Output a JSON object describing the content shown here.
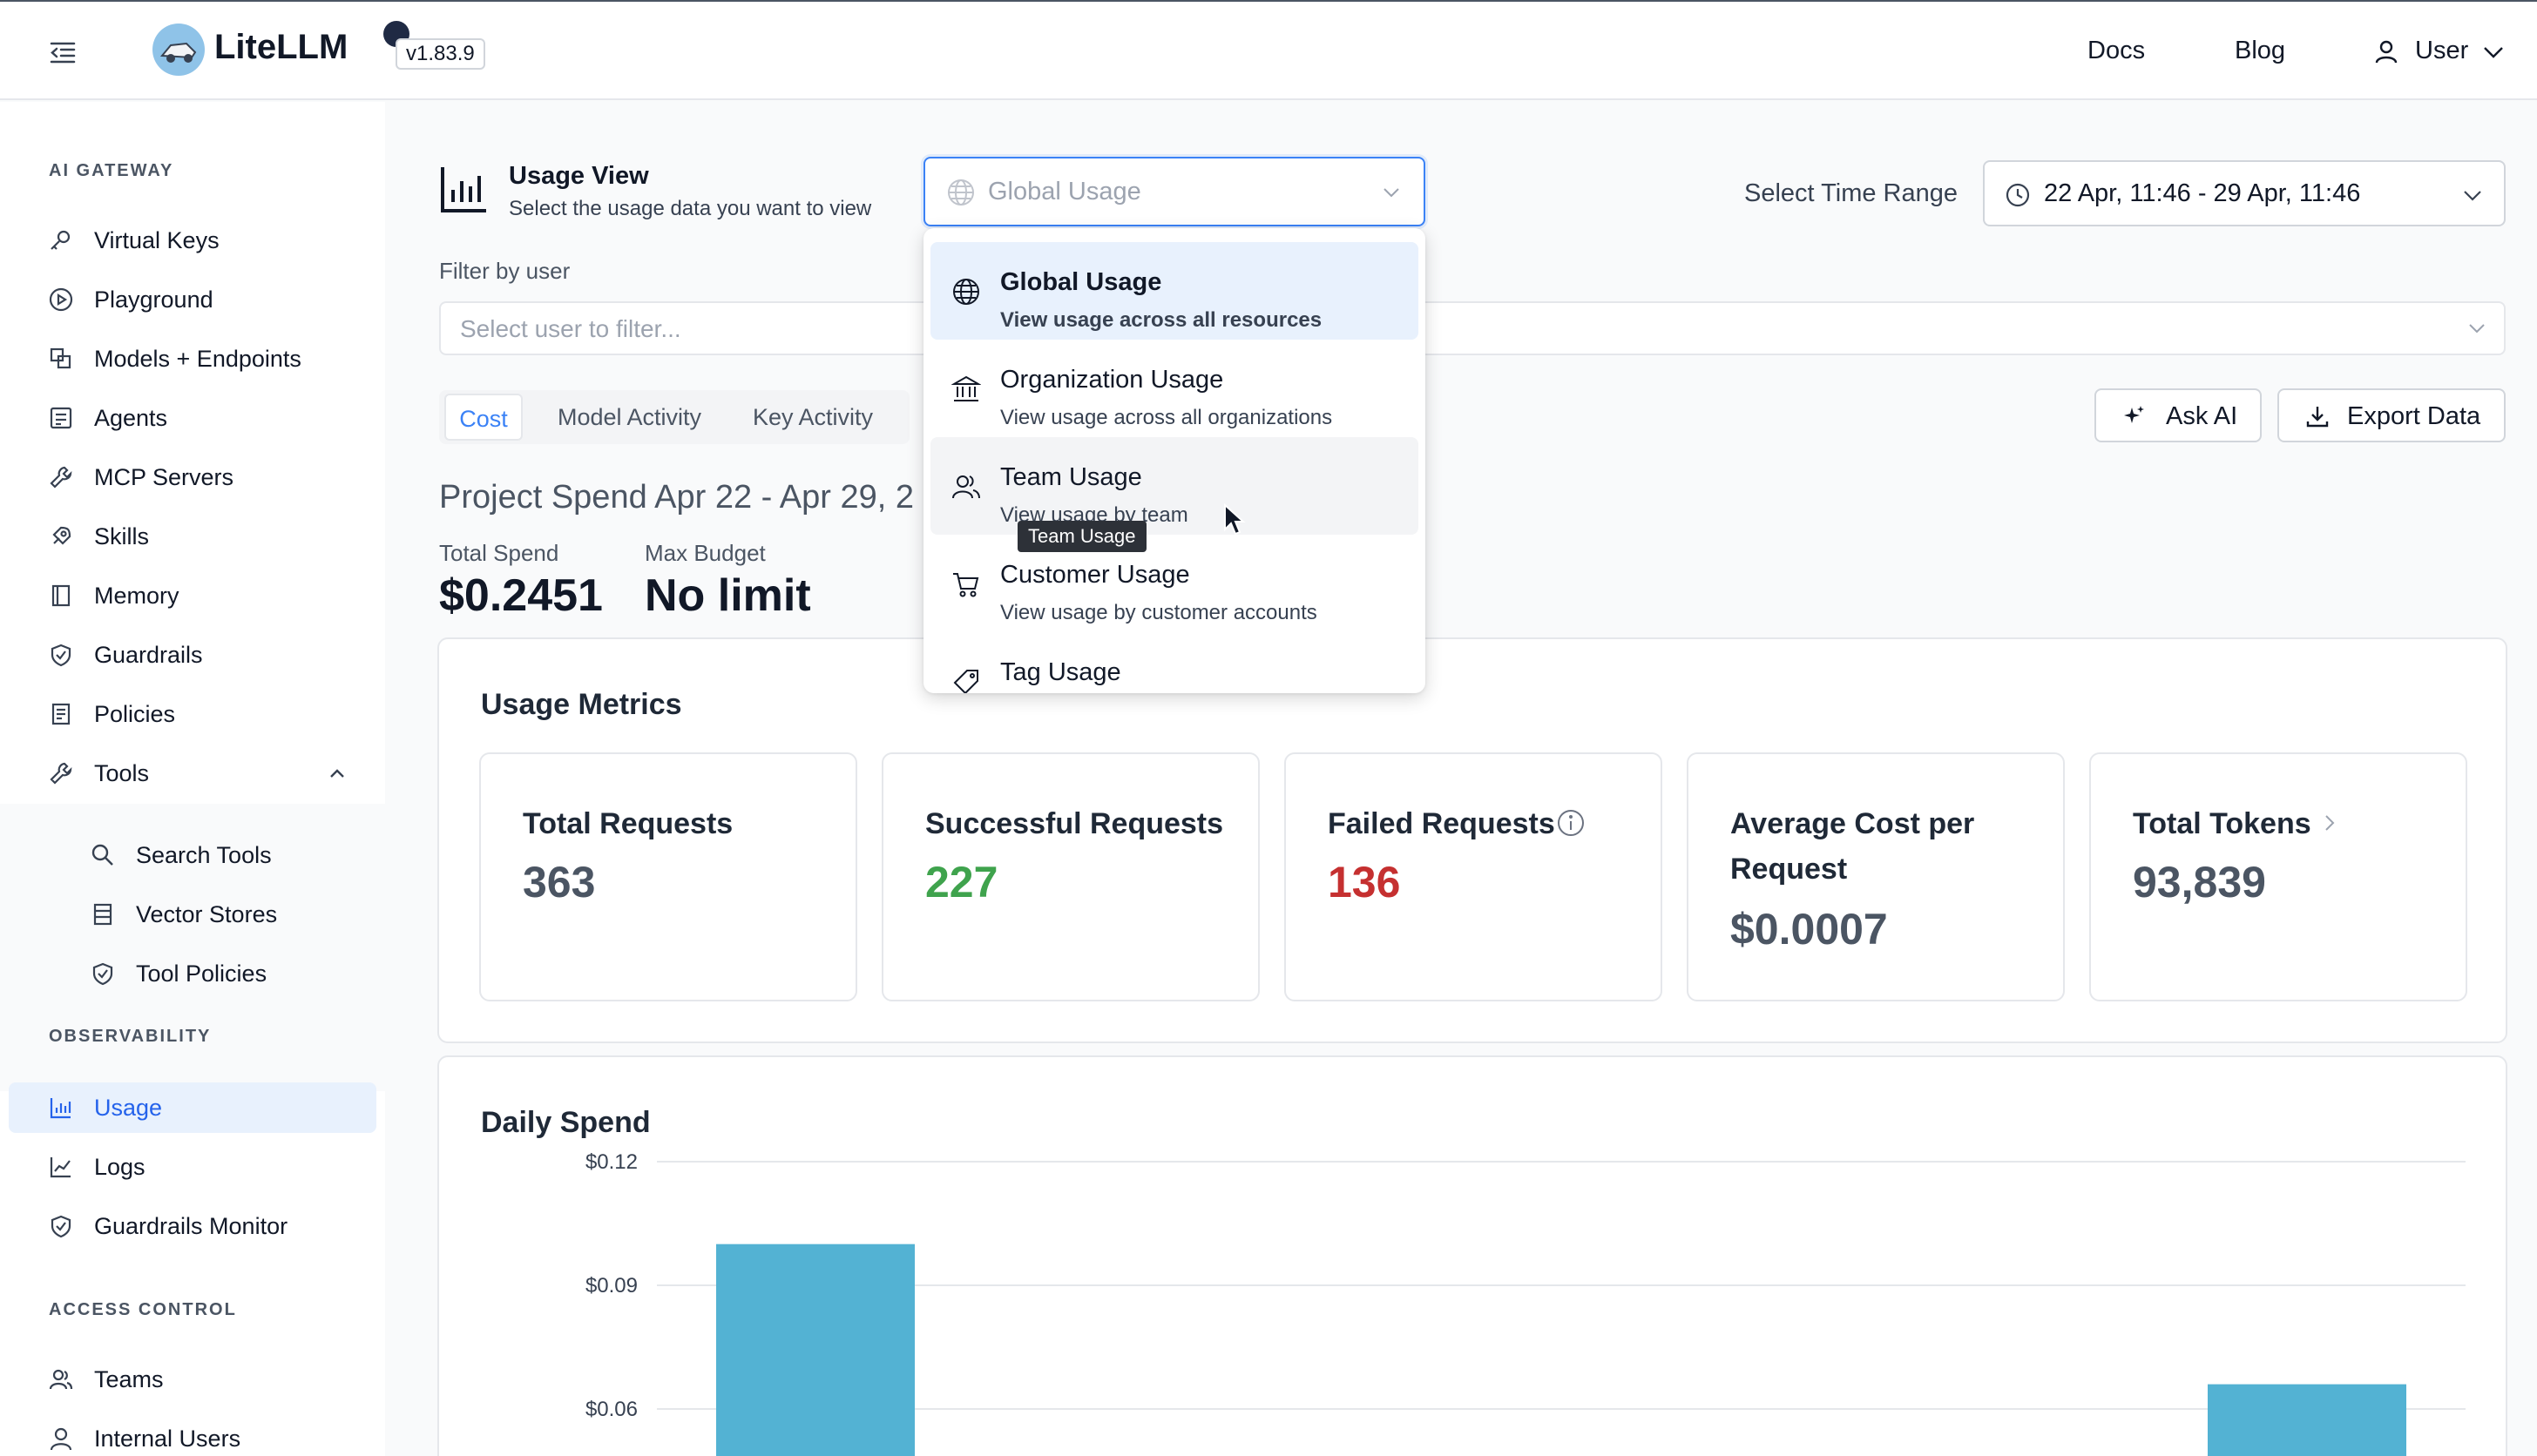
{
  "header": {
    "brand": "LiteLLM",
    "version": "v1.83.9",
    "links": {
      "docs": "Docs",
      "blog": "Blog",
      "user": "User"
    }
  },
  "sidebar": {
    "sections": {
      "gateway": "AI GATEWAY",
      "observability": "OBSERVABILITY",
      "access": "ACCESS CONTROL"
    },
    "items": [
      {
        "label": "Virtual Keys",
        "icon": "key-icon"
      },
      {
        "label": "Playground",
        "icon": "play-icon"
      },
      {
        "label": "Models + Endpoints",
        "icon": "models-icon"
      },
      {
        "label": "Agents",
        "icon": "agent-icon"
      },
      {
        "label": "MCP Servers",
        "icon": "wrench-icon"
      },
      {
        "label": "Skills",
        "icon": "rocket-icon"
      },
      {
        "label": "Memory",
        "icon": "book-icon"
      },
      {
        "label": "Guardrails",
        "icon": "shield-icon"
      },
      {
        "label": "Policies",
        "icon": "policy-icon"
      },
      {
        "label": "Tools",
        "icon": "wrench-icon"
      }
    ],
    "tool_children": [
      {
        "label": "Search Tools",
        "icon": "search-icon"
      },
      {
        "label": "Vector Stores",
        "icon": "database-icon"
      },
      {
        "label": "Tool Policies",
        "icon": "shield-icon"
      }
    ],
    "observability_items": [
      {
        "label": "Usage",
        "icon": "bar-chart-icon",
        "active": true
      },
      {
        "label": "Logs",
        "icon": "line-chart-icon"
      },
      {
        "label": "Guardrails Monitor",
        "icon": "shield-icon"
      }
    ],
    "access_items": [
      {
        "label": "Teams",
        "icon": "team-icon"
      },
      {
        "label": "Internal Users",
        "icon": "user-icon"
      }
    ]
  },
  "usage_view": {
    "title": "Usage View",
    "subtitle": "Select the usage data you want to view",
    "selected": "Global Usage",
    "options": [
      {
        "title": "Global Usage",
        "desc": "View usage across all resources",
        "icon": "globe-icon"
      },
      {
        "title": "Organization Usage",
        "desc": "View usage across all organizations",
        "icon": "bank-icon"
      },
      {
        "title": "Team Usage",
        "desc": "View usage by team",
        "icon": "team-icon"
      },
      {
        "title": "Customer Usage",
        "desc": "View usage by customer accounts",
        "icon": "cart-icon"
      },
      {
        "title": "Tag Usage",
        "desc": "",
        "icon": "tag-icon"
      }
    ],
    "tooltip": "Team Usage"
  },
  "time_range": {
    "label": "Select Time Range",
    "value": "22 Apr, 11:46 - 29 Apr, 11:46"
  },
  "filter": {
    "label": "Filter by user",
    "placeholder": "Select user to filter..."
  },
  "tabs": [
    "Cost",
    "Model Activity",
    "Key Activity"
  ],
  "actions": {
    "ask_ai": "Ask AI",
    "export": "Export Data"
  },
  "project": {
    "heading": "Project Spend Apr 22 - Apr 29, 2",
    "total_spend_label": "Total Spend",
    "total_spend": "$0.2451",
    "max_budget_label": "Max Budget",
    "max_budget": "No limit"
  },
  "metrics": {
    "title": "Usage Metrics",
    "cards": [
      {
        "label": "Total Requests",
        "value": "363",
        "color": "#4b5563"
      },
      {
        "label": "Successful Requests",
        "value": "227",
        "color": "#3fa34d"
      },
      {
        "label": "Failed Requests",
        "value": "136",
        "color": "#c53030"
      },
      {
        "label": "Average Cost per Request",
        "value": "$0.0007",
        "color": "#4b5563"
      },
      {
        "label": "Total Tokens",
        "value": "93,839",
        "color": "#4b5563"
      }
    ]
  },
  "chart_data": {
    "type": "bar",
    "title": "Daily Spend",
    "yticks": [
      "$0.12",
      "$0.09",
      "$0.06"
    ],
    "ylim": [
      0,
      0.12
    ],
    "values": [
      0.1,
      0.066
    ],
    "bar_color": "#53b2d3"
  }
}
